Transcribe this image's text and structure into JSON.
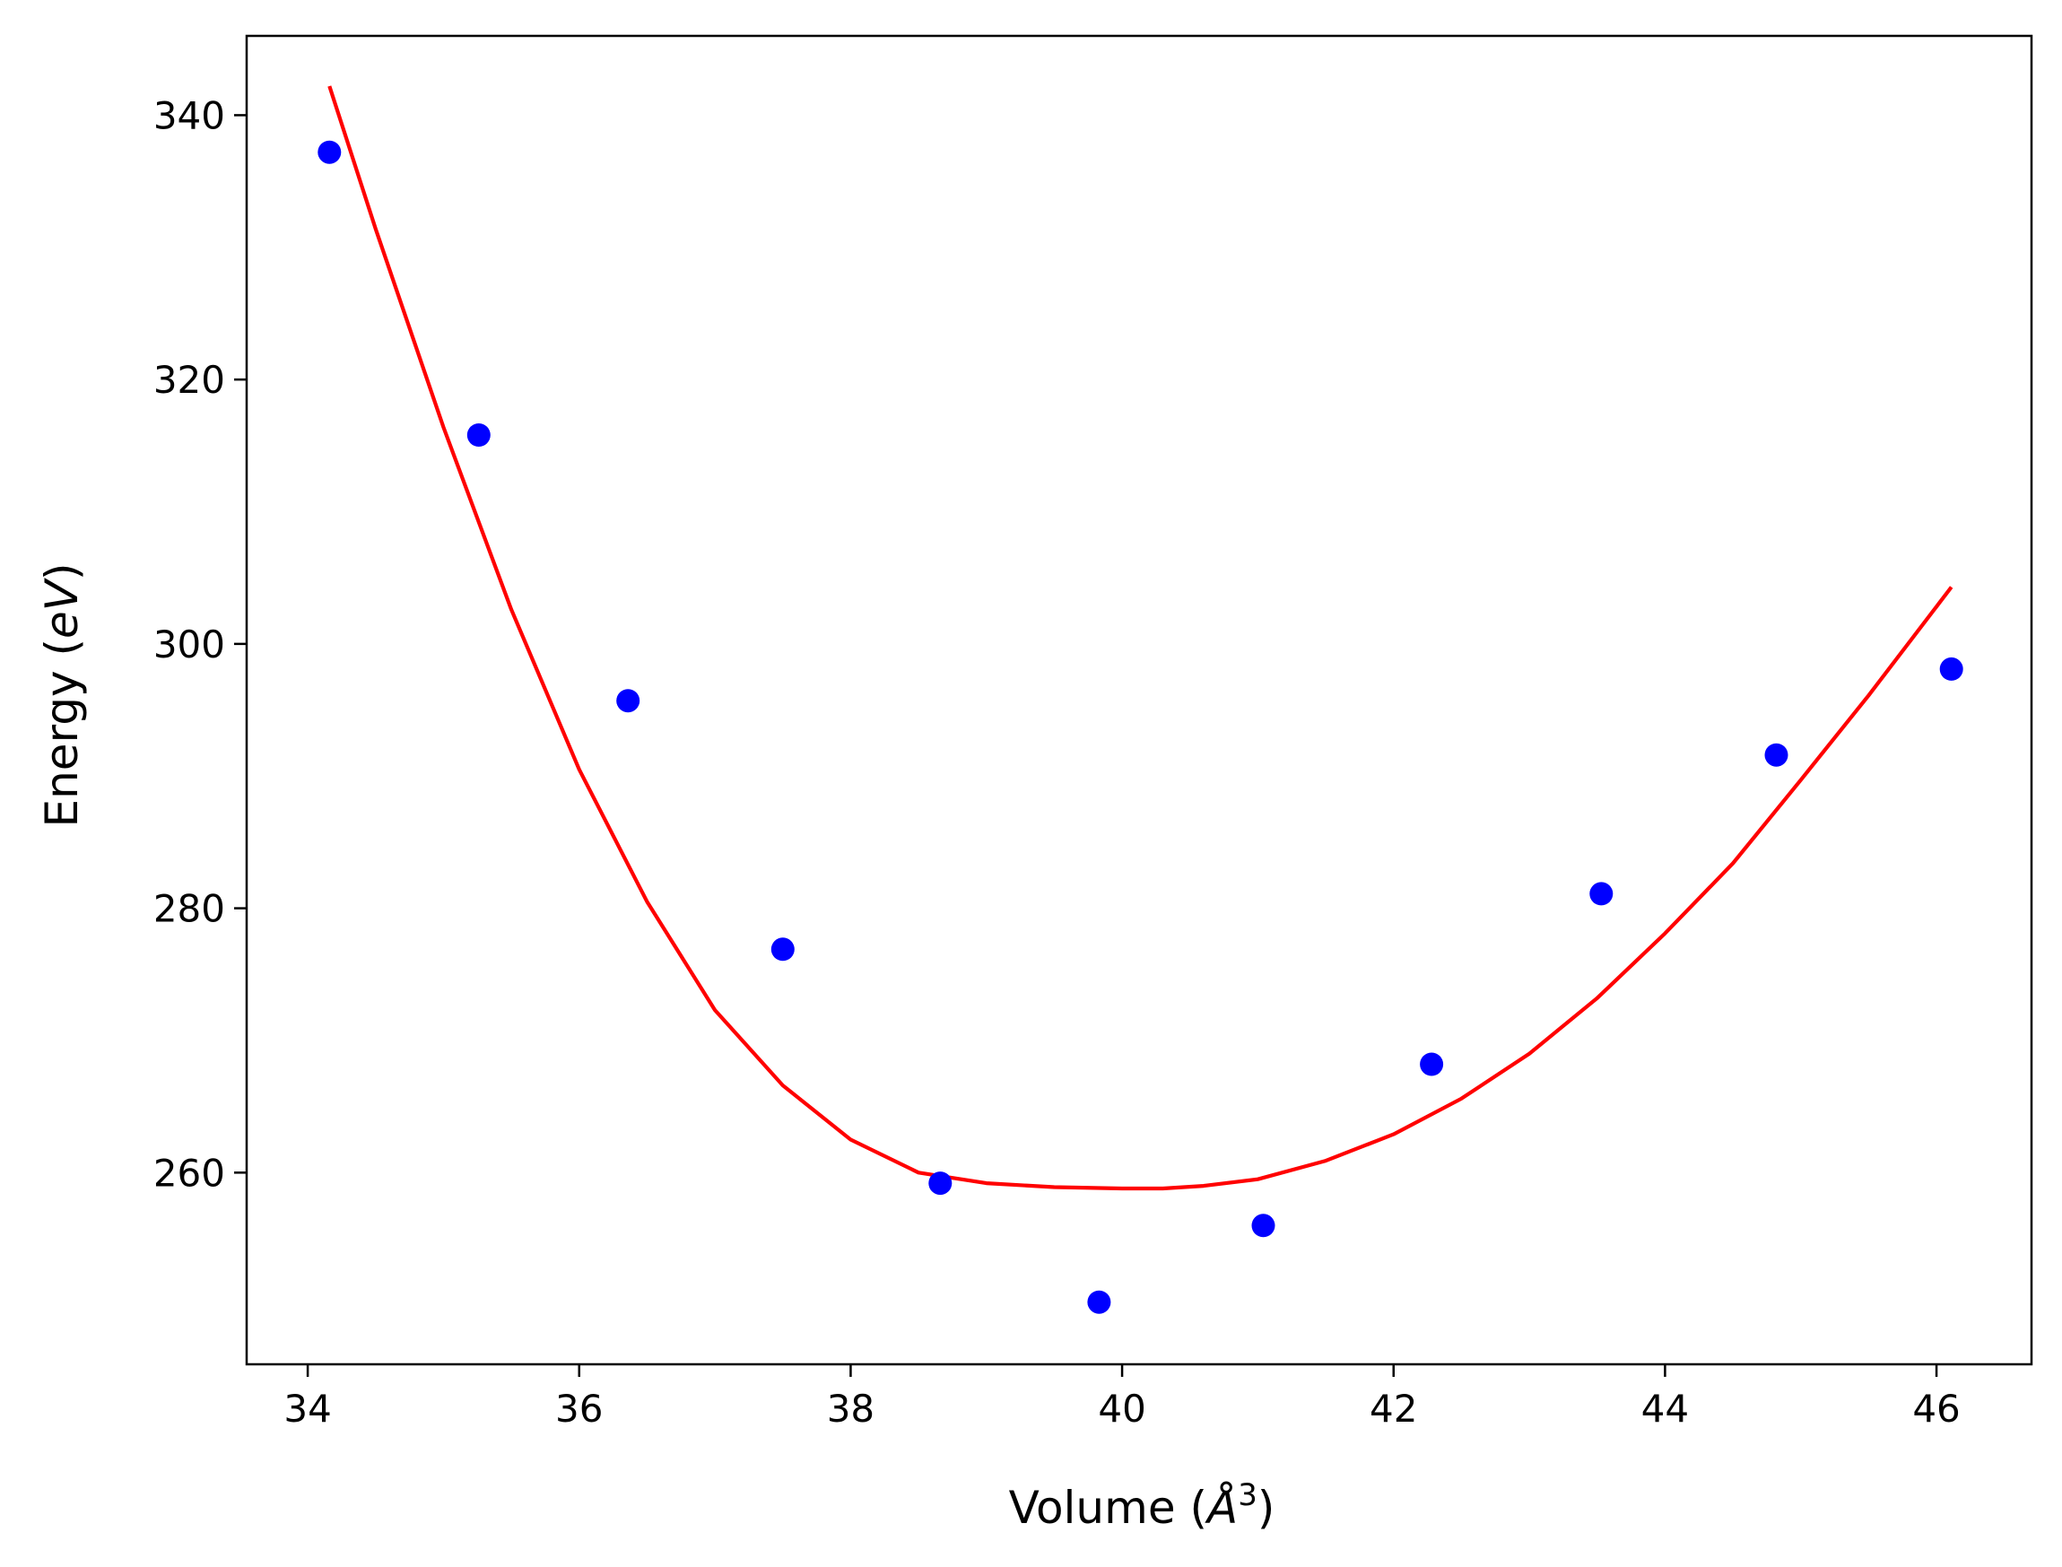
{
  "chart_data": {
    "type": "scatter",
    "xlabel": "Volume (Å³)",
    "xlabel_parts": {
      "pre": "Volume (",
      "sym": "Å",
      "sup": "3",
      "post": ")"
    },
    "ylabel": "Energy (eV)",
    "ylabel_parts": {
      "pre": "Energy (",
      "var": "eV",
      "post": ")"
    },
    "xlim": [
      33.55,
      46.7
    ],
    "ylim": [
      245.5,
      346.0
    ],
    "x_ticks": [
      34,
      36,
      38,
      40,
      42,
      44,
      46
    ],
    "y_ticks": [
      260,
      280,
      300,
      320,
      340
    ],
    "grid": false,
    "series": [
      {
        "kind": "points",
        "color": "#0000ff",
        "x": [
          34.16,
          35.26,
          36.36,
          37.5,
          38.66,
          39.83,
          41.04,
          42.28,
          43.53,
          44.82,
          46.11
        ],
        "y": [
          337.2,
          315.8,
          295.7,
          276.9,
          259.2,
          250.2,
          256.0,
          268.2,
          281.1,
          291.6,
          298.1
        ]
      },
      {
        "kind": "fit-curve",
        "color": "#ff0000",
        "x": [
          34.16,
          34.5,
          35.0,
          35.5,
          36.0,
          36.5,
          37.0,
          37.5,
          38.0,
          38.5,
          39.0,
          39.5,
          40.0,
          40.3,
          40.6,
          41.0,
          41.5,
          42.0,
          42.5,
          43.0,
          43.5,
          44.0,
          44.5,
          45.0,
          45.5,
          46.11
        ],
        "y": [
          342.2,
          331.4,
          316.4,
          302.6,
          290.5,
          280.5,
          272.3,
          266.6,
          262.5,
          260.0,
          259.2,
          258.9,
          258.8,
          258.8,
          259.0,
          259.5,
          260.9,
          262.9,
          265.6,
          269.0,
          273.2,
          278.1,
          283.4,
          289.7,
          296.1,
          304.3
        ]
      }
    ]
  }
}
